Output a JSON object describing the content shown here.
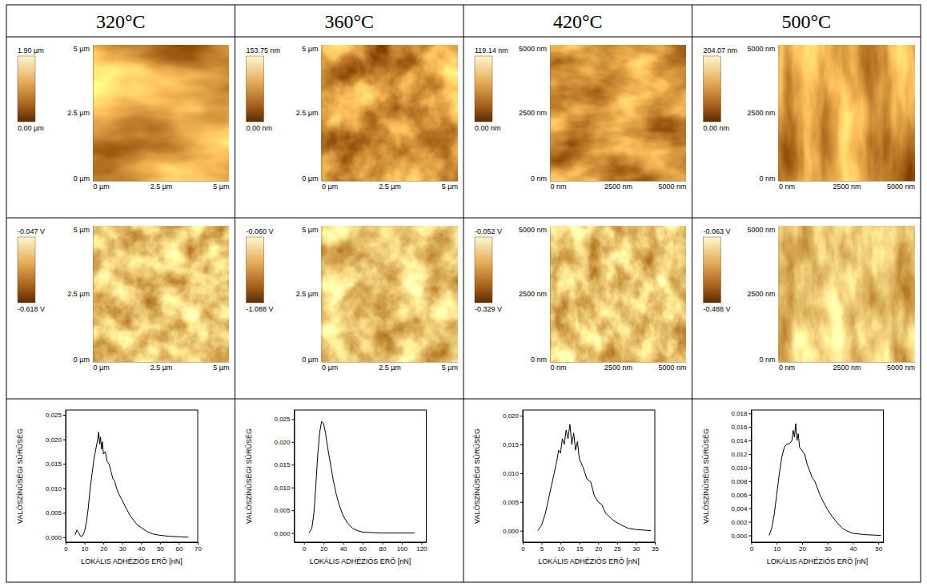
{
  "headers": [
    "320°C",
    "360°C",
    "420°C",
    "500°C"
  ],
  "topography": [
    {
      "xlim": [
        0,
        5
      ],
      "xticks": [
        {
          "value": 0,
          "label": "0 µm"
        },
        {
          "value": 2.5,
          "label": "2.5 µm"
        },
        {
          "value": 5,
          "label": "5 µm"
        }
      ],
      "ylim": [
        0,
        5
      ],
      "yticks": [
        {
          "value": 0,
          "label": "0 µm"
        },
        {
          "value": 2.5,
          "label": "2.5 µm"
        },
        {
          "value": 5,
          "label": "5 µm"
        }
      ],
      "colorbar": {
        "range": [
          0,
          1.9
        ],
        "ticks": [
          {
            "value": 0,
            "label": "0.00 µm"
          },
          {
            "value": 1.9,
            "label": "1.90 µm"
          }
        ]
      }
    },
    {
      "xlim": [
        0,
        5
      ],
      "xticks": [
        {
          "value": 0,
          "label": "0 µm"
        },
        {
          "value": 2.5,
          "label": "2.5 µm"
        },
        {
          "value": 5,
          "label": "5 µm"
        }
      ],
      "ylim": [
        0,
        5
      ],
      "yticks": [
        {
          "value": 0,
          "label": "0 µm"
        },
        {
          "value": 2.5,
          "label": "2.5 µm"
        },
        {
          "value": 5,
          "label": "5 µm"
        }
      ],
      "colorbar": {
        "range": [
          0,
          153.75
        ],
        "ticks": [
          {
            "value": 0,
            "label": "0.00 nm"
          },
          {
            "value": 153.75,
            "label": "153.75 nm"
          }
        ]
      }
    },
    {
      "xlim": [
        0,
        5000
      ],
      "xticks": [
        {
          "value": 0,
          "label": "0 nm"
        },
        {
          "value": 2500,
          "label": "2500 nm"
        },
        {
          "value": 5000,
          "label": "5000 nm"
        }
      ],
      "ylim": [
        0,
        5000
      ],
      "yticks": [
        {
          "value": 0,
          "label": "0 nm"
        },
        {
          "value": 2500,
          "label": "2500 nm"
        },
        {
          "value": 5000,
          "label": "5000 nm"
        }
      ],
      "colorbar": {
        "range": [
          0,
          119.14
        ],
        "ticks": [
          {
            "value": 0,
            "label": "0.00 nm"
          },
          {
            "value": 119.14,
            "label": "119.14 nm"
          }
        ]
      }
    },
    {
      "xlim": [
        0,
        5000
      ],
      "xticks": [
        {
          "value": 0,
          "label": "0 nm"
        },
        {
          "value": 2500,
          "label": "2500 nm"
        },
        {
          "value": 5000,
          "label": "5000 nm"
        }
      ],
      "ylim": [
        0,
        5000
      ],
      "yticks": [
        {
          "value": 0,
          "label": "0 nm"
        },
        {
          "value": 2500,
          "label": "2500 nm"
        },
        {
          "value": 5000,
          "label": "5000 nm"
        }
      ],
      "colorbar": {
        "range": [
          0,
          204.07
        ],
        "ticks": [
          {
            "value": 0,
            "label": "0.00 nm"
          },
          {
            "value": 204.07,
            "label": "204.07 nm"
          }
        ]
      }
    }
  ],
  "phase": [
    {
      "xlim": [
        0,
        5
      ],
      "xticks": [
        {
          "value": 0,
          "label": "0 µm"
        },
        {
          "value": 2.5,
          "label": "2.5 µm"
        },
        {
          "value": 5,
          "label": "5 µm"
        }
      ],
      "ylim": [
        0,
        5
      ],
      "yticks": [
        {
          "value": 0,
          "label": "0 µm"
        },
        {
          "value": 2.5,
          "label": "2.5 µm"
        },
        {
          "value": 5,
          "label": "5 µm"
        }
      ],
      "colorbar": {
        "range": [
          -0.618,
          -0.047
        ],
        "ticks": [
          {
            "value": -0.618,
            "label": "-0.618 V"
          },
          {
            "value": -0.047,
            "label": "-0.047 V"
          }
        ]
      }
    },
    {
      "xlim": [
        0,
        5
      ],
      "xticks": [
        {
          "value": 0,
          "label": "0 µm"
        },
        {
          "value": 2.5,
          "label": "2.5 µm"
        },
        {
          "value": 5,
          "label": "5 µm"
        }
      ],
      "ylim": [
        0,
        5
      ],
      "yticks": [
        {
          "value": 0,
          "label": "0 µm"
        },
        {
          "value": 2.5,
          "label": "2.5 µm"
        },
        {
          "value": 5,
          "label": "5 µm"
        }
      ],
      "colorbar": {
        "range": [
          -1.088,
          -0.06
        ],
        "ticks": [
          {
            "value": -1.088,
            "label": "-1.088 V"
          },
          {
            "value": -0.06,
            "label": "-0.060 V"
          }
        ]
      }
    },
    {
      "xlim": [
        0,
        5000
      ],
      "xticks": [
        {
          "value": 0,
          "label": "0 nm"
        },
        {
          "value": 2500,
          "label": "2500 nm"
        },
        {
          "value": 5000,
          "label": "5000 nm"
        }
      ],
      "ylim": [
        0,
        5000
      ],
      "yticks": [
        {
          "value": 0,
          "label": "0 nm"
        },
        {
          "value": 2500,
          "label": "2500 nm"
        },
        {
          "value": 5000,
          "label": "5000 nm"
        }
      ],
      "colorbar": {
        "range": [
          -0.329,
          -0.052
        ],
        "ticks": [
          {
            "value": -0.329,
            "label": "-0.329 V"
          },
          {
            "value": -0.052,
            "label": "-0.052 V"
          }
        ]
      }
    },
    {
      "xlim": [
        0,
        5000
      ],
      "xticks": [
        {
          "value": 0,
          "label": "0 nm"
        },
        {
          "value": 2500,
          "label": "2500 nm"
        },
        {
          "value": 5000,
          "label": "5000 nm"
        }
      ],
      "ylim": [
        0,
        5000
      ],
      "yticks": [
        {
          "value": 0,
          "label": "0 nm"
        },
        {
          "value": 2500,
          "label": "2500 nm"
        },
        {
          "value": 5000,
          "label": "5000 nm"
        }
      ],
      "colorbar": {
        "range": [
          -0.488,
          -0.063
        ],
        "ticks": [
          {
            "value": -0.488,
            "label": "-0.488 V"
          },
          {
            "value": -0.063,
            "label": "-0.063 V"
          }
        ]
      }
    }
  ],
  "chart_data": [
    {
      "type": "line",
      "color": "#000000",
      "xlabel": "LOKÁLIS ADHÉZIÓS ERÕ [nN]",
      "ylabel": "VALÓSZÍNÛSÉGI SÛRÛSÉG",
      "x": [
        5,
        6,
        7,
        8,
        9,
        10,
        11,
        12,
        13,
        14,
        15,
        16,
        17,
        17.5,
        18,
        18.5,
        19,
        19.5,
        20,
        21,
        22,
        23,
        24,
        25,
        26,
        27,
        28,
        30,
        32,
        34,
        36,
        38,
        40,
        43,
        46,
        50,
        55,
        60,
        65
      ],
      "values": [
        0.0005,
        0.0015,
        0.0008,
        0.0002,
        0.0003,
        0.0012,
        0.003,
        0.006,
        0.01,
        0.013,
        0.016,
        0.018,
        0.02,
        0.0215,
        0.019,
        0.0205,
        0.018,
        0.0195,
        0.017,
        0.0175,
        0.0155,
        0.015,
        0.0135,
        0.012,
        0.0115,
        0.01,
        0.009,
        0.0075,
        0.006,
        0.0045,
        0.0035,
        0.0025,
        0.002,
        0.0012,
        0.0007,
        0.0004,
        0.0002,
        0.0001,
        0
      ],
      "xlim": [
        0,
        70
      ],
      "xticks": [
        0,
        10,
        20,
        30,
        40,
        50,
        60,
        70
      ],
      "ylim": [
        -0.001,
        0.026
      ],
      "yticks": [
        {
          "value": 0,
          "label": "0,000"
        },
        {
          "value": 0.005,
          "label": "0,005"
        },
        {
          "value": 0.01,
          "label": "0,010"
        },
        {
          "value": 0.015,
          "label": "0,015"
        },
        {
          "value": 0.02,
          "label": "0,020"
        },
        {
          "value": 0.025,
          "label": "0,025"
        }
      ]
    },
    {
      "type": "line",
      "color": "#000000",
      "xlabel": "LOKÁLIS ADHÉZIÓS ERÕ [nN]",
      "ylabel": "VALÓSZÍNÛSÉGI SÛRÛSÉG",
      "x": [
        5,
        8,
        10,
        12,
        14,
        16,
        18,
        20,
        22,
        24,
        26,
        28,
        30,
        33,
        36,
        40,
        45,
        50,
        55,
        60,
        70,
        80,
        90,
        100,
        113
      ],
      "values": [
        0,
        0.001,
        0.004,
        0.01,
        0.017,
        0.022,
        0.0245,
        0.024,
        0.022,
        0.019,
        0.0165,
        0.014,
        0.0115,
        0.0085,
        0.0062,
        0.0038,
        0.002,
        0.001,
        0.0005,
        0.0002,
        0.0001,
        0,
        0,
        0,
        0
      ],
      "xlim": [
        -10,
        125
      ],
      "xticks": [
        0,
        20,
        40,
        60,
        80,
        100,
        120
      ],
      "ylim": [
        -0.002,
        0.027
      ],
      "yticks": [
        {
          "value": 0,
          "label": "0,000"
        },
        {
          "value": 0.005,
          "label": "0,005"
        },
        {
          "value": 0.01,
          "label": "0,010"
        },
        {
          "value": 0.015,
          "label": "0,015"
        },
        {
          "value": 0.02,
          "label": "0,020"
        },
        {
          "value": 0.025,
          "label": "0,025"
        }
      ]
    },
    {
      "type": "line",
      "color": "#000000",
      "xlabel": "LOKÁLIS ADHÉZIÓS ERÕ [nN]",
      "ylabel": "VALÓSZÍNÛSÉGI SÛRÛSÉG",
      "x": [
        4,
        5,
        6,
        7,
        8,
        9,
        9.5,
        10,
        10.5,
        11,
        11.5,
        12,
        12.5,
        13,
        13.5,
        14,
        14.5,
        15,
        16,
        17,
        18,
        19,
        20,
        21,
        22,
        24,
        26,
        28,
        30,
        34
      ],
      "values": [
        0,
        0.001,
        0.003,
        0.006,
        0.009,
        0.012,
        0.014,
        0.0135,
        0.016,
        0.015,
        0.0175,
        0.016,
        0.0185,
        0.015,
        0.017,
        0.014,
        0.0155,
        0.0125,
        0.011,
        0.009,
        0.0085,
        0.006,
        0.005,
        0.0045,
        0.003,
        0.0018,
        0.001,
        0.0004,
        0.0002,
        0
      ],
      "xlim": [
        0,
        35
      ],
      "xticks": [
        0,
        5,
        10,
        15,
        20,
        25,
        30,
        35
      ],
      "ylim": [
        -0.002,
        0.021
      ],
      "yticks": [
        {
          "value": 0,
          "label": "0,000"
        },
        {
          "value": 0.005,
          "label": "0,005"
        },
        {
          "value": 0.01,
          "label": "0,010"
        },
        {
          "value": 0.015,
          "label": "0,015"
        },
        {
          "value": 0.02,
          "label": "0,020"
        }
      ]
    },
    {
      "type": "line",
      "color": "#000000",
      "xlabel": "LOKÁLIS ADHÉZIÓS ERÕ [nN]",
      "ylabel": "VALÓSZÍNÛSÉGI SÛRÛSÉG",
      "x": [
        7,
        8,
        9,
        10,
        11,
        12,
        13,
        14,
        15,
        16,
        16.5,
        17,
        17.5,
        18,
        18.5,
        19,
        20,
        21,
        22,
        23,
        24,
        25,
        26,
        27,
        28,
        30,
        32,
        34,
        36,
        38,
        40,
        45,
        51
      ],
      "values": [
        0,
        0.001,
        0.003,
        0.006,
        0.009,
        0.0115,
        0.013,
        0.0135,
        0.0135,
        0.014,
        0.0155,
        0.0145,
        0.0165,
        0.014,
        0.015,
        0.013,
        0.0125,
        0.012,
        0.0105,
        0.0095,
        0.0085,
        0.008,
        0.007,
        0.006,
        0.0052,
        0.0038,
        0.0027,
        0.0018,
        0.001,
        0.0006,
        0.0003,
        0.0001,
        0
      ],
      "xlim": [
        0,
        52
      ],
      "xticks": [
        0,
        10,
        20,
        30,
        40,
        50
      ],
      "ylim": [
        -0.001,
        0.0185
      ],
      "yticks": [
        {
          "value": 0,
          "label": "0,000"
        },
        {
          "value": 0.002,
          "label": "0,002"
        },
        {
          "value": 0.004,
          "label": "0,004"
        },
        {
          "value": 0.006,
          "label": "0,006"
        },
        {
          "value": 0.008,
          "label": "0,008"
        },
        {
          "value": 0.01,
          "label": "0,010"
        },
        {
          "value": 0.012,
          "label": "0,012"
        },
        {
          "value": 0.014,
          "label": "0,014"
        },
        {
          "value": 0.016,
          "label": "0,016"
        },
        {
          "value": 0.018,
          "label": "0,018"
        }
      ]
    }
  ]
}
